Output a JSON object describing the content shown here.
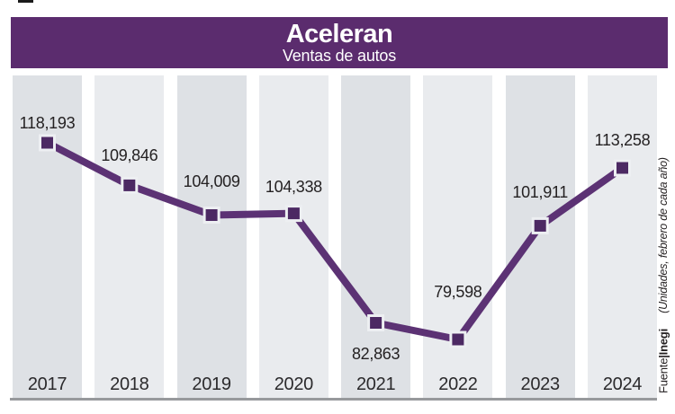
{
  "header": {
    "title": "Aceleran",
    "subtitle": "Ventas de autos"
  },
  "side_notes": {
    "unit_note": "(Unidades, febrero de cada año)",
    "source_prefix": "Fuente",
    "source_separator": "|",
    "source_name": "Inegi"
  },
  "chart_data": {
    "type": "line",
    "title": "Aceleran",
    "subtitle": "Ventas de autos",
    "categories": [
      "2017",
      "2018",
      "2019",
      "2020",
      "2021",
      "2022",
      "2023",
      "2024"
    ],
    "values": [
      118193,
      109846,
      104009,
      104338,
      82863,
      79598,
      101911,
      113258
    ],
    "value_labels": [
      "118,193",
      "109,846",
      "104,009",
      "104,338",
      "82,863",
      "79,598",
      "101,911",
      "113,258"
    ],
    "label_offsets_y": [
      -22,
      -33,
      -38,
      -30,
      34,
      -53,
      -37,
      -31
    ],
    "ylim": [
      79598,
      118193
    ],
    "xlabel": "",
    "ylabel": "",
    "legend": "none",
    "grid": "alternating vertical bands, no y-axis",
    "annotations": [
      "(Unidades, febrero de cada año)",
      "Fuente|Inegi"
    ],
    "colors": {
      "header_bg": "#5b2c6e",
      "line": "#5c3274",
      "marker_fill": "#4c2963",
      "marker_border": "#edeff2",
      "band_dark": "#dee1e5",
      "band_light": "#e9ebee",
      "baseline": "#97999c",
      "label_text": "#242122",
      "title_text": "#ffffff"
    }
  }
}
